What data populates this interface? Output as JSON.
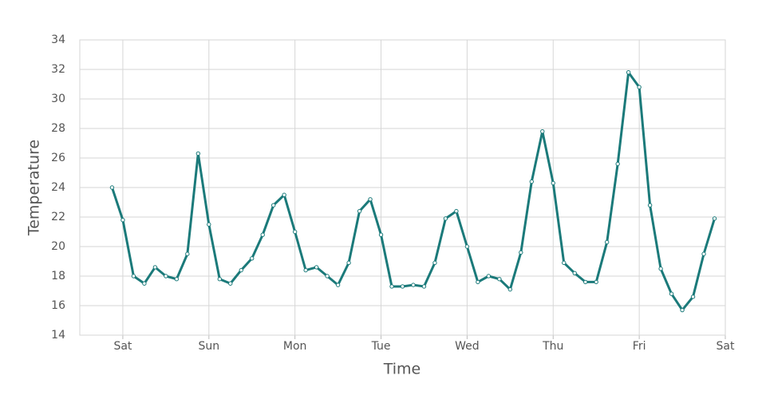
{
  "chart_data": {
    "type": "line",
    "x_label": "Time",
    "y_label": "Temperature",
    "x": [
      -0.125,
      0,
      0.125,
      0.25,
      0.375,
      0.5,
      0.625,
      0.75,
      0.875,
      1.0,
      1.125,
      1.25,
      1.375,
      1.5,
      1.625,
      1.75,
      1.875,
      2.0,
      2.125,
      2.25,
      2.375,
      2.5,
      2.625,
      2.75,
      2.875,
      3.0,
      3.125,
      3.25,
      3.375,
      3.5,
      3.625,
      3.75,
      3.875,
      4.0,
      4.125,
      4.25,
      4.375,
      4.5,
      4.625,
      4.75,
      4.875,
      5.0,
      5.125,
      5.25,
      5.375,
      5.5,
      5.625,
      5.75,
      5.875,
      6.0,
      6.125,
      6.25,
      6.375,
      6.5,
      6.625,
      6.75,
      6.875
    ],
    "series": [
      {
        "color": "#1b7a7a",
        "values": [
          24.0,
          21.8,
          18.0,
          17.5,
          18.6,
          18.0,
          17.8,
          19.5,
          26.3,
          21.5,
          17.8,
          17.5,
          18.4,
          19.2,
          20.8,
          22.8,
          23.5,
          21.0,
          18.4,
          18.6,
          18.0,
          17.4,
          18.9,
          22.4,
          23.2,
          20.8,
          17.3,
          17.3,
          17.4,
          17.3,
          18.9,
          21.9,
          22.4,
          20.0,
          17.6,
          18.0,
          17.8,
          17.1,
          19.6,
          24.4,
          27.8,
          24.3,
          18.9,
          18.2,
          17.6,
          17.6,
          20.3,
          25.6,
          31.8,
          30.8,
          22.8,
          18.5,
          16.8,
          15.7,
          16.6,
          19.5,
          21.9
        ]
      }
    ],
    "xlim": [
      -0.5,
      7
    ],
    "xticks": [
      {
        "value": 0,
        "label": "Sat"
      },
      {
        "value": 1,
        "label": "Sun"
      },
      {
        "value": 2,
        "label": "Mon"
      },
      {
        "value": 3,
        "label": "Tue"
      },
      {
        "value": 4,
        "label": "Wed"
      },
      {
        "value": 5,
        "label": "Thu"
      },
      {
        "value": 6,
        "label": "Fri"
      },
      {
        "value": 7,
        "label": "Sat"
      }
    ],
    "ylim": [
      14,
      34
    ],
    "yticks": [
      14,
      16,
      18,
      20,
      22,
      24,
      26,
      28,
      30,
      32,
      34
    ],
    "grid": true
  }
}
